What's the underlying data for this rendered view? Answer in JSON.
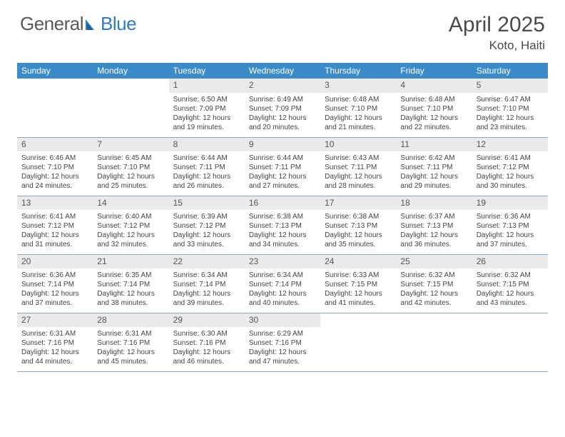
{
  "brand": {
    "part1": "General",
    "part2": "Blue"
  },
  "title": "April 2025",
  "location": "Koto, Haiti",
  "colors": {
    "header_bg": "#3b8bc8",
    "header_fg": "#ffffff",
    "daynum_bg": "#eaeaea",
    "body_text": "#444444",
    "rule": "#88a8c0",
    "brand_gray": "#5a5a5a",
    "brand_blue": "#2e7cc0"
  },
  "weekdays": [
    "Sunday",
    "Monday",
    "Tuesday",
    "Wednesday",
    "Thursday",
    "Friday",
    "Saturday"
  ],
  "grid": [
    [
      null,
      null,
      {
        "n": "1",
        "sr": "6:50 AM",
        "ss": "7:09 PM",
        "dl": "12 hours and 19 minutes."
      },
      {
        "n": "2",
        "sr": "6:49 AM",
        "ss": "7:09 PM",
        "dl": "12 hours and 20 minutes."
      },
      {
        "n": "3",
        "sr": "6:48 AM",
        "ss": "7:10 PM",
        "dl": "12 hours and 21 minutes."
      },
      {
        "n": "4",
        "sr": "6:48 AM",
        "ss": "7:10 PM",
        "dl": "12 hours and 22 minutes."
      },
      {
        "n": "5",
        "sr": "6:47 AM",
        "ss": "7:10 PM",
        "dl": "12 hours and 23 minutes."
      }
    ],
    [
      {
        "n": "6",
        "sr": "6:46 AM",
        "ss": "7:10 PM",
        "dl": "12 hours and 24 minutes."
      },
      {
        "n": "7",
        "sr": "6:45 AM",
        "ss": "7:10 PM",
        "dl": "12 hours and 25 minutes."
      },
      {
        "n": "8",
        "sr": "6:44 AM",
        "ss": "7:11 PM",
        "dl": "12 hours and 26 minutes."
      },
      {
        "n": "9",
        "sr": "6:44 AM",
        "ss": "7:11 PM",
        "dl": "12 hours and 27 minutes."
      },
      {
        "n": "10",
        "sr": "6:43 AM",
        "ss": "7:11 PM",
        "dl": "12 hours and 28 minutes."
      },
      {
        "n": "11",
        "sr": "6:42 AM",
        "ss": "7:11 PM",
        "dl": "12 hours and 29 minutes."
      },
      {
        "n": "12",
        "sr": "6:41 AM",
        "ss": "7:12 PM",
        "dl": "12 hours and 30 minutes."
      }
    ],
    [
      {
        "n": "13",
        "sr": "6:41 AM",
        "ss": "7:12 PM",
        "dl": "12 hours and 31 minutes."
      },
      {
        "n": "14",
        "sr": "6:40 AM",
        "ss": "7:12 PM",
        "dl": "12 hours and 32 minutes."
      },
      {
        "n": "15",
        "sr": "6:39 AM",
        "ss": "7:12 PM",
        "dl": "12 hours and 33 minutes."
      },
      {
        "n": "16",
        "sr": "6:38 AM",
        "ss": "7:13 PM",
        "dl": "12 hours and 34 minutes."
      },
      {
        "n": "17",
        "sr": "6:38 AM",
        "ss": "7:13 PM",
        "dl": "12 hours and 35 minutes."
      },
      {
        "n": "18",
        "sr": "6:37 AM",
        "ss": "7:13 PM",
        "dl": "12 hours and 36 minutes."
      },
      {
        "n": "19",
        "sr": "6:36 AM",
        "ss": "7:13 PM",
        "dl": "12 hours and 37 minutes."
      }
    ],
    [
      {
        "n": "20",
        "sr": "6:36 AM",
        "ss": "7:14 PM",
        "dl": "12 hours and 37 minutes."
      },
      {
        "n": "21",
        "sr": "6:35 AM",
        "ss": "7:14 PM",
        "dl": "12 hours and 38 minutes."
      },
      {
        "n": "22",
        "sr": "6:34 AM",
        "ss": "7:14 PM",
        "dl": "12 hours and 39 minutes."
      },
      {
        "n": "23",
        "sr": "6:34 AM",
        "ss": "7:14 PM",
        "dl": "12 hours and 40 minutes."
      },
      {
        "n": "24",
        "sr": "6:33 AM",
        "ss": "7:15 PM",
        "dl": "12 hours and 41 minutes."
      },
      {
        "n": "25",
        "sr": "6:32 AM",
        "ss": "7:15 PM",
        "dl": "12 hours and 42 minutes."
      },
      {
        "n": "26",
        "sr": "6:32 AM",
        "ss": "7:15 PM",
        "dl": "12 hours and 43 minutes."
      }
    ],
    [
      {
        "n": "27",
        "sr": "6:31 AM",
        "ss": "7:16 PM",
        "dl": "12 hours and 44 minutes."
      },
      {
        "n": "28",
        "sr": "6:31 AM",
        "ss": "7:16 PM",
        "dl": "12 hours and 45 minutes."
      },
      {
        "n": "29",
        "sr": "6:30 AM",
        "ss": "7:16 PM",
        "dl": "12 hours and 46 minutes."
      },
      {
        "n": "30",
        "sr": "6:29 AM",
        "ss": "7:16 PM",
        "dl": "12 hours and 47 minutes."
      },
      null,
      null,
      null
    ]
  ],
  "labels": {
    "sunrise": "Sunrise: ",
    "sunset": "Sunset: ",
    "daylight": "Daylight: "
  }
}
